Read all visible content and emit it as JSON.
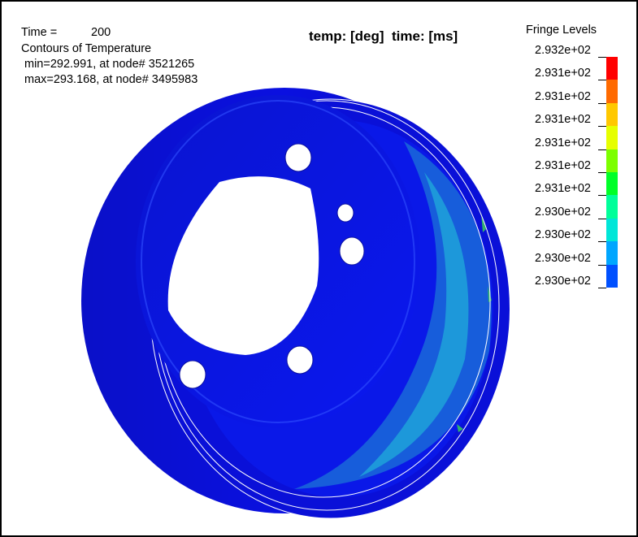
{
  "header": {
    "time_label": "Time =",
    "time_value": "200",
    "title": "Contours of Temperature",
    "min_line": "min=292.991, at node# 3521265",
    "max_line": "max=293.168, at node# 3495983",
    "units": "temp: [deg]  time: [ms]"
  },
  "legend": {
    "title": "Fringe Levels",
    "levels": [
      "2.932e+02",
      "2.931e+02",
      "2.931e+02",
      "2.931e+02",
      "2.931e+02",
      "2.931e+02",
      "2.931e+02",
      "2.930e+02",
      "2.930e+02",
      "2.930e+02",
      "2.930e+02"
    ],
    "colors": [
      "#ff0000",
      "#ff6a00",
      "#ffc800",
      "#e6ff00",
      "#7cff00",
      "#00ff28",
      "#00ff9a",
      "#00e6d8",
      "#00a6ff",
      "#0050ff",
      "#0000e6"
    ]
  },
  "model": {
    "base_color": "#0a10d8",
    "hot_color": "#22c8d8",
    "warm_color": "#30b070"
  }
}
